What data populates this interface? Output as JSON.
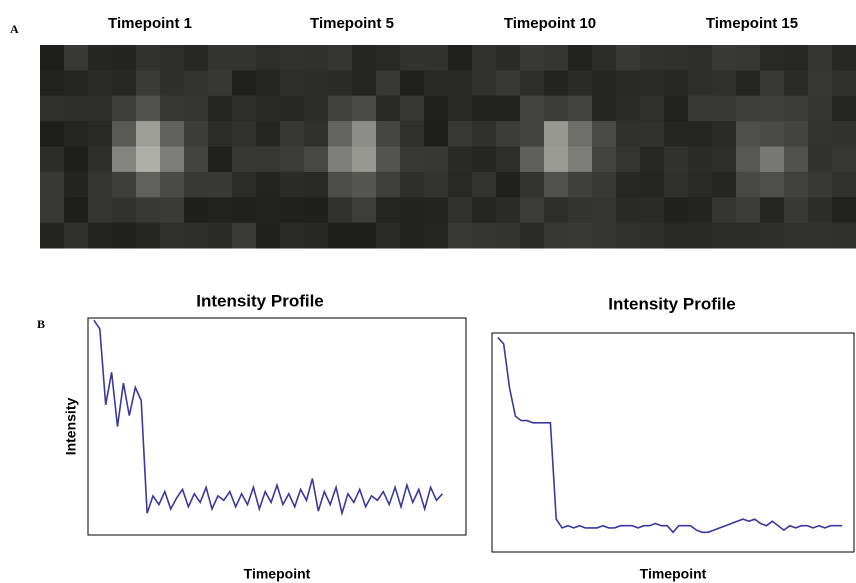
{
  "panel_labels": [
    "A",
    "B"
  ],
  "panel_a": {
    "titles": [
      "Timepoint 1",
      "Timepoint 5",
      "Timepoint 10",
      "Timepoint 15"
    ]
  },
  "chart_data": [
    {
      "type": "line",
      "title": "Intensity Profile",
      "x_label": "Timepoint",
      "y_label": "Intensity",
      "color": "#3b3a9a",
      "x": [
        1,
        2,
        3,
        4,
        5,
        6,
        7,
        8,
        9,
        10,
        11,
        12,
        13,
        14,
        15,
        16,
        17,
        18,
        19,
        20,
        21,
        22,
        23,
        24,
        25,
        26,
        27,
        28,
        29,
        30,
        31,
        32,
        33,
        34,
        35,
        36,
        37,
        38,
        39,
        40,
        41,
        42,
        43,
        44,
        45,
        46,
        47,
        48,
        49,
        50,
        51,
        52,
        53,
        54,
        55,
        56,
        57,
        58,
        59,
        60
      ],
      "values": [
        99,
        95,
        60,
        75,
        50,
        70,
        55,
        68,
        62,
        10,
        18,
        14,
        20,
        12,
        17,
        21,
        13,
        19,
        15,
        22,
        12,
        18,
        16,
        20,
        13,
        19,
        14,
        22,
        12,
        20,
        15,
        23,
        14,
        19,
        13,
        21,
        16,
        26,
        11,
        20,
        14,
        22,
        10,
        19,
        15,
        21,
        13,
        18,
        16,
        20,
        14,
        22,
        13,
        23,
        15,
        21,
        12,
        22,
        16,
        19
      ],
      "xlim": [
        0,
        64
      ],
      "ylim": [
        0,
        100
      ]
    },
    {
      "type": "line",
      "title": "Intensity Profile",
      "x_label": "Timepoint",
      "color": "#3b3a9a",
      "x": [
        1,
        2,
        3,
        4,
        5,
        6,
        7,
        8,
        9,
        10,
        11,
        12,
        13,
        14,
        15,
        16,
        17,
        18,
        19,
        20,
        21,
        22,
        23,
        24,
        25,
        26,
        27,
        28,
        29,
        30,
        31,
        32,
        33,
        34,
        35,
        36,
        37,
        38,
        39,
        40,
        41,
        42,
        43,
        44,
        45,
        46,
        47,
        48,
        49,
        50,
        51,
        52,
        53,
        54,
        55,
        56,
        57,
        58,
        59,
        60
      ],
      "values": [
        98,
        95,
        75,
        62,
        60,
        60,
        59,
        59,
        59,
        59,
        15,
        11,
        12,
        11,
        12,
        11,
        11,
        11,
        12,
        11,
        11,
        12,
        12,
        12,
        11,
        12,
        12,
        13,
        12,
        12,
        9,
        12,
        12,
        12,
        10,
        9,
        9,
        10,
        11,
        12,
        13,
        14,
        15,
        14,
        15,
        13,
        12,
        14,
        12,
        10,
        12,
        11,
        12,
        12,
        11,
        12,
        11,
        12,
        12,
        12
      ],
      "xlim": [
        0,
        62
      ],
      "ylim": [
        0,
        100
      ]
    }
  ]
}
